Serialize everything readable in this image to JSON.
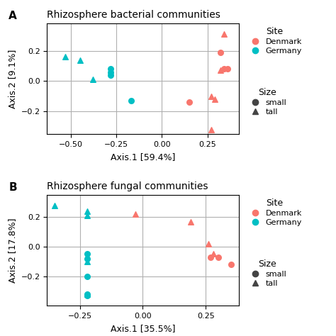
{
  "chart_data": [
    {
      "type": "scatter",
      "panel_label": "A",
      "title": "Rhizosphere bacterial communities",
      "x_label": "Axis.1 [59.4%]",
      "y_label": "Axis.2 [9.1%]",
      "xlim": [
        -0.63,
        0.42
      ],
      "ylim": [
        -0.35,
        0.38
      ],
      "xticks": [
        {
          "value": -0.5,
          "label": "−0.50"
        },
        {
          "value": -0.25,
          "label": "−0.25"
        },
        {
          "value": 0.0,
          "label": "0.00"
        },
        {
          "value": 0.25,
          "label": "0.25"
        }
      ],
      "yticks": [
        {
          "value": -0.2,
          "label": "−0.2"
        },
        {
          "value": 0.0,
          "label": "0.0"
        },
        {
          "value": 0.2,
          "label": "0.2"
        }
      ],
      "grid": true,
      "series": [
        {
          "name": "Denmark",
          "size": "small",
          "color": "#F8766D",
          "marker": "circle",
          "x": [
            0.32,
            0.34,
            0.36,
            0.15
          ],
          "values": [
            0.19,
            0.08,
            0.08,
            -0.14
          ]
        },
        {
          "name": "Denmark",
          "size": "tall",
          "color": "#F8766D",
          "marker": "triangle",
          "x": [
            0.34,
            0.32,
            0.27,
            0.29,
            0.27
          ],
          "values": [
            0.31,
            0.07,
            -0.1,
            -0.12,
            -0.32
          ]
        },
        {
          "name": "Germany",
          "size": "small",
          "color": "#00BFC4",
          "marker": "circle",
          "x": [
            -0.28,
            -0.28,
            -0.28,
            -0.17
          ],
          "values": [
            0.08,
            0.06,
            0.04,
            -0.13
          ]
        },
        {
          "name": "Germany",
          "size": "tall",
          "color": "#00BFC4",
          "marker": "triangle",
          "x": [
            -0.53,
            -0.45,
            -0.38
          ],
          "values": [
            0.16,
            0.14,
            0.01
          ]
        }
      ],
      "legend_groups": [
        {
          "title": "Site",
          "entries": [
            {
              "label": "Denmark",
              "color": "#F8766D",
              "marker": "circle"
            },
            {
              "label": "Germany",
              "color": "#00BFC4",
              "marker": "circle"
            }
          ]
        },
        {
          "title": "Size",
          "entries": [
            {
              "label": "small",
              "marker": "circle"
            },
            {
              "label": "tall",
              "marker": "triangle"
            }
          ]
        }
      ]
    },
    {
      "type": "scatter",
      "panel_label": "B",
      "title": "Rhizosphere fungal communities",
      "x_label": "Axis.1 [35.5%]",
      "y_label": "Axis.2 [17.8%]",
      "xlim": [
        -0.38,
        0.38
      ],
      "ylim": [
        -0.4,
        0.35
      ],
      "xticks": [
        {
          "value": -0.25,
          "label": "−0.25"
        },
        {
          "value": 0.0,
          "label": "0.00"
        },
        {
          "value": 0.25,
          "label": "0.25"
        }
      ],
      "yticks": [
        {
          "value": -0.2,
          "label": "−0.2"
        },
        {
          "value": 0.0,
          "label": "0.0"
        },
        {
          "value": 0.2,
          "label": "0.2"
        }
      ],
      "grid": true,
      "series": [
        {
          "name": "Denmark",
          "size": "small",
          "color": "#F8766D",
          "marker": "circle",
          "x": [
            0.27,
            0.3,
            0.35
          ],
          "values": [
            -0.07,
            -0.07,
            -0.12
          ]
        },
        {
          "name": "Denmark",
          "size": "tall",
          "color": "#F8766D",
          "marker": "triangle",
          "x": [
            -0.03,
            0.19,
            0.26,
            0.28
          ],
          "values": [
            0.22,
            0.17,
            0.02,
            -0.05
          ]
        },
        {
          "name": "Germany",
          "size": "small",
          "color": "#00BFC4",
          "marker": "circle",
          "x": [
            -0.22,
            -0.22,
            -0.22,
            -0.22,
            -0.22
          ],
          "values": [
            -0.05,
            -0.08,
            -0.2,
            -0.32,
            -0.33
          ]
        },
        {
          "name": "Germany",
          "size": "tall",
          "color": "#00BFC4",
          "marker": "triangle",
          "x": [
            -0.35,
            -0.22,
            -0.22,
            -0.22,
            -0.22
          ],
          "values": [
            0.28,
            0.24,
            0.21,
            -0.1,
            -0.32
          ]
        }
      ],
      "legend_groups": [
        {
          "title": "Site",
          "entries": [
            {
              "label": "Denmark",
              "color": "#F8766D",
              "marker": "circle"
            },
            {
              "label": "Germany",
              "color": "#00BFC4",
              "marker": "circle"
            }
          ]
        },
        {
          "title": "Size",
          "entries": [
            {
              "label": "small",
              "marker": "circle"
            },
            {
              "label": "tall",
              "marker": "triangle"
            }
          ]
        }
      ]
    }
  ]
}
